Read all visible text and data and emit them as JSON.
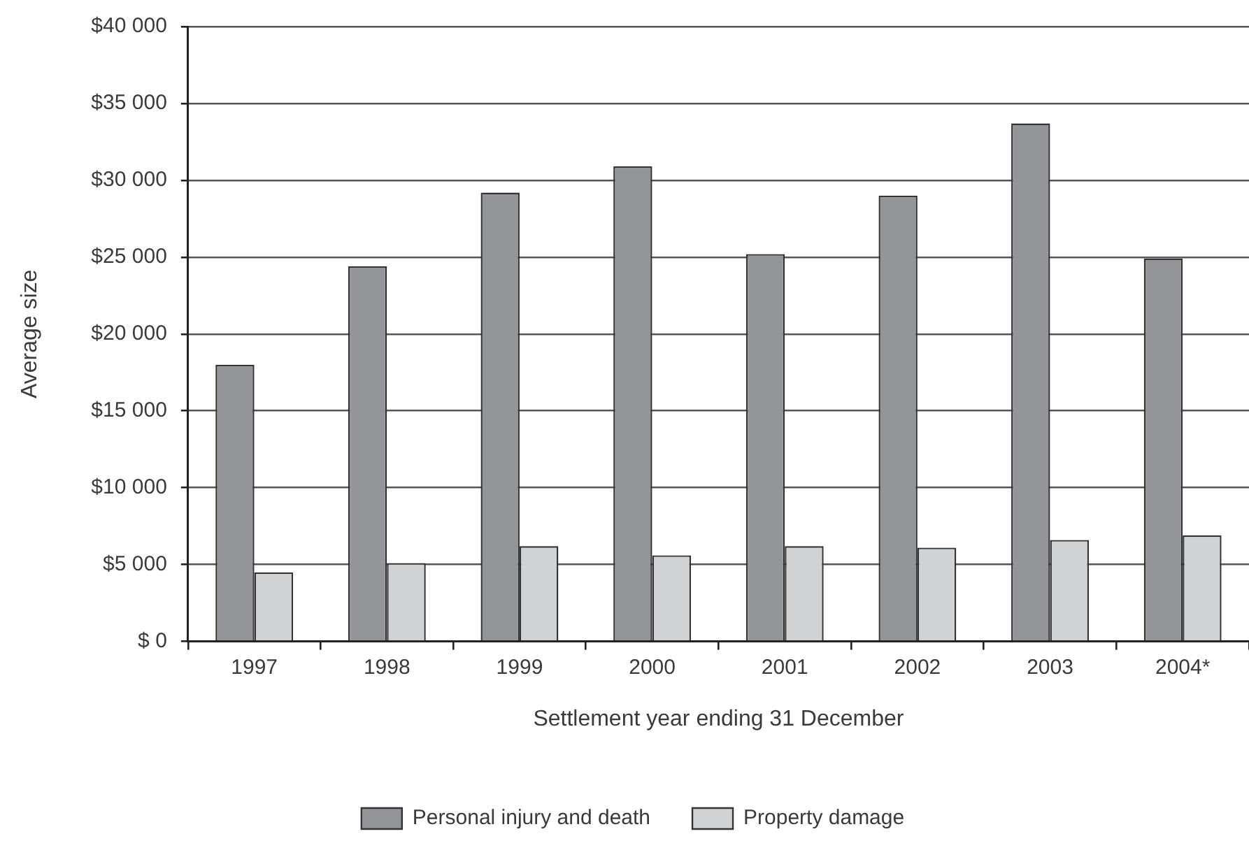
{
  "chart_data": {
    "type": "bar",
    "xlabel": "Settlement year ending 31 December",
    "ylabel": "Average size",
    "categories": [
      "1997",
      "1998",
      "1999",
      "2000",
      "2001",
      "2002",
      "2003",
      "2004*"
    ],
    "series": [
      {
        "name": "Personal injury and death",
        "color": "#939598",
        "values": [
          18000,
          24400,
          29200,
          30900,
          25200,
          29000,
          33700,
          24900
        ]
      },
      {
        "name": "Property damage",
        "color": "#d1d2d4",
        "values": [
          4500,
          5100,
          6200,
          5600,
          6200,
          6100,
          6600,
          6900
        ]
      }
    ],
    "ylim": [
      0,
      40000
    ],
    "yticks": [
      {
        "value": 0,
        "label": "$ 0"
      },
      {
        "value": 5000,
        "label": "$5 000"
      },
      {
        "value": 10000,
        "label": "$10 000"
      },
      {
        "value": 15000,
        "label": "$15 000"
      },
      {
        "value": 20000,
        "label": "$20 000"
      },
      {
        "value": 25000,
        "label": "$25 000"
      },
      {
        "value": 30000,
        "label": "$30 000"
      },
      {
        "value": 35000,
        "label": "$35 000"
      },
      {
        "value": 40000,
        "label": "$40 000"
      }
    ],
    "grid": "y",
    "legend": "bottom"
  }
}
